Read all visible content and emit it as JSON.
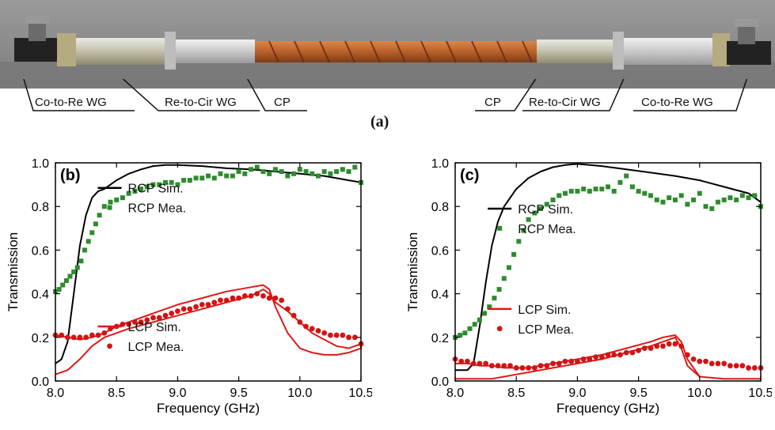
{
  "photo": {
    "callouts_left": [
      "Co-to-Re WG",
      "Re-to-Cir WG",
      "CP"
    ],
    "callouts_right": [
      "CP",
      "Re-to-Cir WG",
      "Co-to-Re WG"
    ],
    "panel_label": "(a)"
  },
  "colors": {
    "rcp_sim": "#000000",
    "rcp_mea": "#2e8b2e",
    "lcp_sim": "#e01818",
    "lcp_mea": "#d11414"
  },
  "chart_data": [
    {
      "type": "line",
      "panel_label": "(b)",
      "xlabel": "Frequency (GHz)",
      "ylabel": "Transmission",
      "xlim": [
        8.0,
        10.5
      ],
      "ylim": [
        0.0,
        1.0
      ],
      "xticks": [
        "8.0",
        "8.5",
        "9.0",
        "9.5",
        "10.0",
        "10.5"
      ],
      "yticks": [
        "0.0",
        "0.2",
        "0.4",
        "0.6",
        "0.8",
        "1.0"
      ],
      "legend_top": [
        "RCP Sim.",
        "RCP Mea."
      ],
      "legend_bottom": [
        "LCP Sim.",
        "LCP Mea."
      ],
      "series": [
        {
          "name": "RCP Sim.",
          "style": "line",
          "x": [
            8.0,
            8.05,
            8.1,
            8.15,
            8.2,
            8.25,
            8.3,
            8.35,
            8.4,
            8.5,
            8.6,
            8.7,
            8.8,
            8.9,
            9.0,
            9.2,
            9.4,
            9.6,
            9.8,
            10.0,
            10.2,
            10.4,
            10.5
          ],
          "y": [
            0.08,
            0.1,
            0.18,
            0.4,
            0.62,
            0.76,
            0.84,
            0.87,
            0.88,
            0.92,
            0.95,
            0.97,
            0.985,
            0.99,
            0.99,
            0.985,
            0.975,
            0.97,
            0.96,
            0.95,
            0.94,
            0.92,
            0.91
          ]
        },
        {
          "name": "RCP Mea.",
          "style": "marker",
          "x": [
            8.0,
            8.03,
            8.06,
            8.09,
            8.12,
            8.15,
            8.18,
            8.21,
            8.24,
            8.27,
            8.3,
            8.33,
            8.36,
            8.4,
            8.45,
            8.5,
            8.55,
            8.6,
            8.65,
            8.7,
            8.75,
            8.8,
            8.85,
            8.9,
            8.95,
            9.0,
            9.05,
            9.1,
            9.15,
            9.2,
            9.25,
            9.3,
            9.35,
            9.4,
            9.45,
            9.5,
            9.55,
            9.6,
            9.65,
            9.7,
            9.75,
            9.8,
            9.85,
            9.9,
            9.95,
            10.0,
            10.05,
            10.1,
            10.15,
            10.2,
            10.25,
            10.3,
            10.35,
            10.4,
            10.45,
            10.5
          ],
          "y": [
            0.41,
            0.42,
            0.44,
            0.46,
            0.48,
            0.5,
            0.52,
            0.55,
            0.6,
            0.64,
            0.68,
            0.72,
            0.76,
            0.8,
            0.82,
            0.83,
            0.84,
            0.86,
            0.87,
            0.88,
            0.89,
            0.9,
            0.9,
            0.91,
            0.91,
            0.9,
            0.92,
            0.92,
            0.93,
            0.93,
            0.94,
            0.93,
            0.95,
            0.94,
            0.94,
            0.96,
            0.95,
            0.97,
            0.98,
            0.96,
            0.95,
            0.97,
            0.96,
            0.94,
            0.95,
            0.97,
            0.96,
            0.95,
            0.94,
            0.96,
            0.95,
            0.96,
            0.97,
            0.96,
            0.98,
            0.91
          ]
        },
        {
          "name": "LCP Sim.",
          "style": "loop",
          "x": [
            8.0,
            8.1,
            8.2,
            8.3,
            8.4,
            8.5,
            8.6,
            8.8,
            9.0,
            9.2,
            9.4,
            9.6,
            9.7,
            9.75,
            9.8,
            9.9,
            10.0,
            10.1,
            10.2,
            10.3,
            10.4,
            10.5,
            10.5,
            10.4,
            10.3,
            10.2,
            10.1,
            10.0,
            9.9,
            9.8,
            9.75,
            9.7,
            9.6,
            9.4,
            9.2,
            9.0,
            8.8,
            8.6,
            8.5,
            8.4,
            8.3,
            8.2,
            8.1,
            8.0
          ],
          "y": [
            0.03,
            0.05,
            0.1,
            0.16,
            0.2,
            0.22,
            0.24,
            0.27,
            0.3,
            0.33,
            0.36,
            0.39,
            0.42,
            0.4,
            0.36,
            0.32,
            0.27,
            0.22,
            0.19,
            0.16,
            0.15,
            0.17,
            0.15,
            0.13,
            0.12,
            0.12,
            0.13,
            0.15,
            0.22,
            0.34,
            0.42,
            0.44,
            0.43,
            0.41,
            0.38,
            0.35,
            0.31,
            0.27,
            0.25,
            0.22,
            0.2,
            0.19,
            0.2,
            0.21
          ]
        },
        {
          "name": "LCP Mea.",
          "style": "marker",
          "x": [
            8.0,
            8.05,
            8.1,
            8.15,
            8.2,
            8.25,
            8.3,
            8.35,
            8.4,
            8.45,
            8.5,
            8.55,
            8.6,
            8.65,
            8.7,
            8.75,
            8.8,
            8.85,
            8.9,
            8.95,
            9.0,
            9.05,
            9.1,
            9.15,
            9.2,
            9.25,
            9.3,
            9.35,
            9.4,
            9.45,
            9.5,
            9.55,
            9.6,
            9.65,
            9.7,
            9.75,
            9.8,
            9.85,
            9.9,
            9.95,
            10.0,
            10.05,
            10.1,
            10.15,
            10.2,
            10.25,
            10.3,
            10.35,
            10.4,
            10.45,
            10.5
          ],
          "y": [
            0.21,
            0.21,
            0.2,
            0.2,
            0.2,
            0.2,
            0.21,
            0.21,
            0.22,
            0.24,
            0.25,
            0.26,
            0.26,
            0.27,
            0.27,
            0.28,
            0.29,
            0.29,
            0.3,
            0.31,
            0.32,
            0.33,
            0.33,
            0.34,
            0.35,
            0.35,
            0.36,
            0.37,
            0.37,
            0.38,
            0.38,
            0.39,
            0.39,
            0.4,
            0.39,
            0.38,
            0.38,
            0.37,
            0.33,
            0.3,
            0.27,
            0.25,
            0.24,
            0.23,
            0.22,
            0.21,
            0.21,
            0.21,
            0.2,
            0.2,
            0.17
          ]
        }
      ]
    },
    {
      "type": "line",
      "panel_label": "(c)",
      "xlabel": "Frequency (GHz)",
      "ylabel": "Transmission",
      "xlim": [
        8.0,
        10.5
      ],
      "ylim": [
        0.0,
        1.0
      ],
      "xticks": [
        "8.0",
        "8.5",
        "9.0",
        "9.5",
        "10.0",
        "10.5"
      ],
      "yticks": [
        "0.0",
        "0.2",
        "0.4",
        "0.6",
        "0.8",
        "1.0"
      ],
      "legend_top": [
        "RCP Sim.",
        "RCP Mea."
      ],
      "legend_bottom": [
        "LCP Sim.",
        "LCP Mea."
      ],
      "series": [
        {
          "name": "RCP Sim.",
          "style": "line",
          "x": [
            8.0,
            8.1,
            8.15,
            8.2,
            8.25,
            8.3,
            8.35,
            8.4,
            8.5,
            8.6,
            8.7,
            8.8,
            8.9,
            9.0,
            9.1,
            9.2,
            9.4,
            9.6,
            9.8,
            10.0,
            10.2,
            10.4,
            10.5
          ],
          "y": [
            0.05,
            0.05,
            0.08,
            0.25,
            0.45,
            0.62,
            0.73,
            0.8,
            0.88,
            0.93,
            0.96,
            0.98,
            0.99,
            0.995,
            0.99,
            0.985,
            0.97,
            0.955,
            0.94,
            0.92,
            0.89,
            0.86,
            0.82
          ]
        },
        {
          "name": "RCP Mea.",
          "style": "marker",
          "x": [
            8.0,
            8.04,
            8.08,
            8.12,
            8.16,
            8.2,
            8.24,
            8.28,
            8.32,
            8.36,
            8.4,
            8.44,
            8.48,
            8.52,
            8.56,
            8.6,
            8.65,
            8.7,
            8.75,
            8.8,
            8.85,
            8.9,
            8.95,
            9.0,
            9.05,
            9.1,
            9.15,
            9.2,
            9.25,
            9.3,
            9.35,
            9.4,
            9.45,
            9.5,
            9.55,
            9.6,
            9.65,
            9.7,
            9.75,
            9.8,
            9.85,
            9.9,
            9.95,
            10.0,
            10.05,
            10.1,
            10.15,
            10.2,
            10.25,
            10.3,
            10.35,
            10.4,
            10.45,
            10.5
          ],
          "y": [
            0.2,
            0.21,
            0.22,
            0.24,
            0.26,
            0.28,
            0.31,
            0.34,
            0.38,
            0.42,
            0.47,
            0.52,
            0.58,
            0.64,
            0.69,
            0.74,
            0.77,
            0.79,
            0.81,
            0.83,
            0.85,
            0.86,
            0.87,
            0.87,
            0.88,
            0.87,
            0.88,
            0.88,
            0.89,
            0.87,
            0.91,
            0.94,
            0.89,
            0.87,
            0.86,
            0.85,
            0.83,
            0.82,
            0.84,
            0.83,
            0.85,
            0.81,
            0.83,
            0.86,
            0.8,
            0.79,
            0.82,
            0.83,
            0.84,
            0.83,
            0.85,
            0.84,
            0.85,
            0.8
          ]
        },
        {
          "name": "LCP Sim.",
          "style": "loop",
          "x": [
            8.0,
            8.1,
            8.2,
            8.3,
            8.4,
            8.5,
            8.6,
            8.8,
            9.0,
            9.2,
            9.4,
            9.6,
            9.7,
            9.8,
            9.85,
            9.9,
            10.0,
            10.2,
            10.4,
            10.5,
            10.5,
            10.4,
            10.2,
            10.0,
            9.9,
            9.85,
            9.8,
            9.7,
            9.6,
            9.4,
            9.2,
            9.0,
            8.8,
            8.6,
            8.5,
            8.4,
            8.3,
            8.2,
            8.1,
            8.0
          ],
          "y": [
            0.01,
            0.01,
            0.01,
            0.01,
            0.02,
            0.03,
            0.04,
            0.06,
            0.08,
            0.1,
            0.13,
            0.16,
            0.18,
            0.2,
            0.15,
            0.07,
            0.02,
            0.01,
            0.01,
            0.01,
            0.01,
            0.01,
            0.01,
            0.02,
            0.1,
            0.18,
            0.21,
            0.2,
            0.18,
            0.15,
            0.12,
            0.1,
            0.08,
            0.06,
            0.06,
            0.06,
            0.07,
            0.07,
            0.08,
            0.08
          ]
        },
        {
          "name": "LCP Mea.",
          "style": "marker",
          "x": [
            8.0,
            8.05,
            8.1,
            8.15,
            8.2,
            8.25,
            8.3,
            8.35,
            8.4,
            8.45,
            8.5,
            8.55,
            8.6,
            8.65,
            8.7,
            8.75,
            8.8,
            8.85,
            8.9,
            8.95,
            9.0,
            9.05,
            9.1,
            9.15,
            9.2,
            9.25,
            9.3,
            9.35,
            9.4,
            9.45,
            9.5,
            9.55,
            9.6,
            9.65,
            9.7,
            9.75,
            9.8,
            9.85,
            9.9,
            9.95,
            10.0,
            10.05,
            10.1,
            10.15,
            10.2,
            10.25,
            10.3,
            10.35,
            10.4,
            10.45,
            10.5
          ],
          "y": [
            0.1,
            0.09,
            0.09,
            0.08,
            0.08,
            0.08,
            0.07,
            0.07,
            0.07,
            0.07,
            0.06,
            0.06,
            0.06,
            0.06,
            0.07,
            0.07,
            0.08,
            0.08,
            0.09,
            0.09,
            0.09,
            0.1,
            0.1,
            0.11,
            0.11,
            0.12,
            0.12,
            0.12,
            0.13,
            0.13,
            0.14,
            0.15,
            0.15,
            0.16,
            0.16,
            0.17,
            0.17,
            0.16,
            0.12,
            0.1,
            0.09,
            0.09,
            0.08,
            0.08,
            0.08,
            0.07,
            0.07,
            0.07,
            0.06,
            0.06,
            0.06
          ]
        }
      ]
    }
  ]
}
